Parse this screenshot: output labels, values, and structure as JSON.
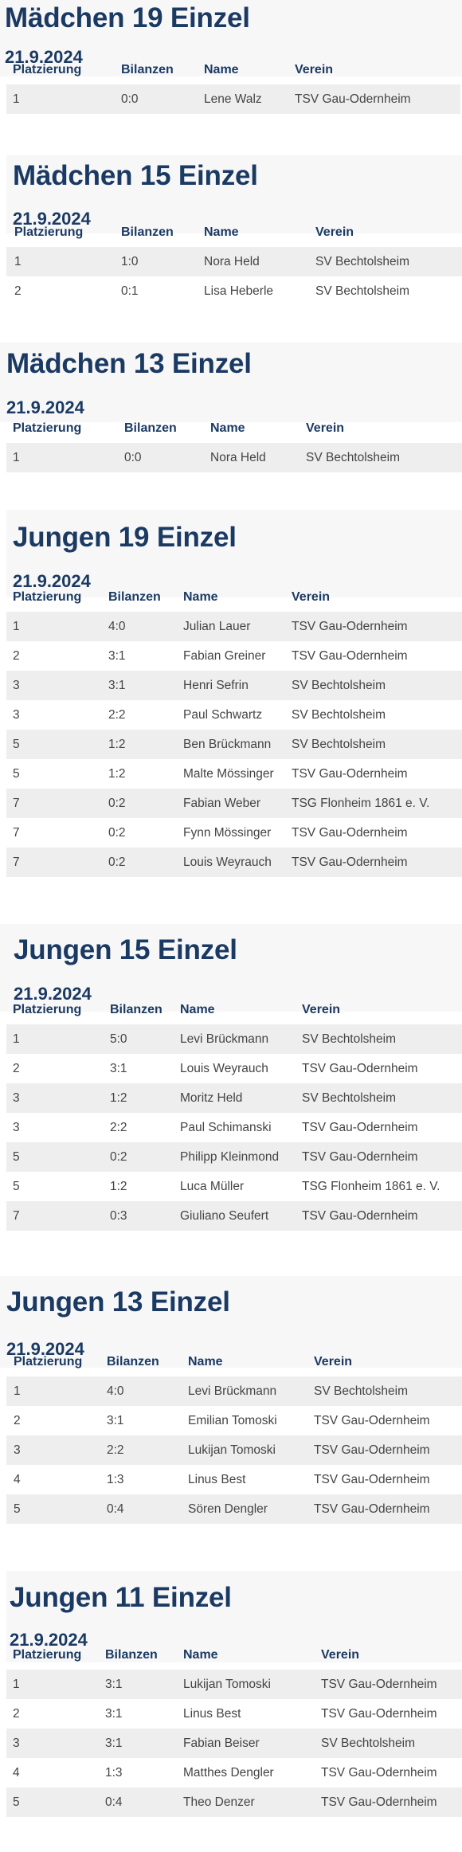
{
  "columns": [
    "Platzierung",
    "Bilanzen",
    "Name",
    "Verein"
  ],
  "sections": [
    {
      "title": "Mädchen 19 Einzel",
      "date": "21.9.2024",
      "rows": [
        [
          "1",
          "0:0",
          "Lene Walz",
          "TSV Gau-Odernheim"
        ]
      ]
    },
    {
      "title": "Mädchen 15 Einzel",
      "date": "21.9.2024",
      "rows": [
        [
          "1",
          "1:0",
          "Nora Held",
          "SV Bechtolsheim"
        ],
        [
          "2",
          "0:1",
          "Lisa Heberle",
          "SV Bechtolsheim"
        ]
      ]
    },
    {
      "title": "Mädchen 13 Einzel",
      "date": "21.9.2024",
      "rows": [
        [
          "1",
          "0:0",
          "Nora Held",
          "SV Bechtolsheim"
        ]
      ]
    },
    {
      "title": "Jungen 19 Einzel",
      "date": "21.9.2024",
      "rows": [
        [
          "1",
          "4:0",
          "Julian Lauer",
          "TSV Gau-Odernheim"
        ],
        [
          "2",
          "3:1",
          "Fabian Greiner",
          "TSV Gau-Odernheim"
        ],
        [
          "3",
          "3:1",
          "Henri Sefrin",
          "SV Bechtolsheim"
        ],
        [
          "3",
          "2:2",
          "Paul Schwartz",
          "SV Bechtolsheim"
        ],
        [
          "5",
          "1:2",
          "Ben Brückmann",
          "SV Bechtolsheim"
        ],
        [
          "5",
          "1:2",
          "Malte Mössinger",
          "TSV Gau-Odernheim"
        ],
        [
          "7",
          "0:2",
          "Fabian Weber",
          "TSG Flonheim 1861 e. V."
        ],
        [
          "7",
          "0:2",
          "Fynn Mössinger",
          "TSV Gau-Odernheim"
        ],
        [
          "7",
          "0:2",
          "Louis Weyrauch",
          "TSV Gau-Odernheim"
        ]
      ]
    },
    {
      "title": "Jungen 15 Einzel",
      "date": "21.9.2024",
      "rows": [
        [
          "1",
          "5:0",
          "Levi Brückmann",
          "SV Bechtolsheim"
        ],
        [
          "2",
          "3:1",
          "Louis Weyrauch",
          "TSV Gau-Odernheim"
        ],
        [
          "3",
          "1:2",
          "Moritz Held",
          "SV Bechtolsheim"
        ],
        [
          "3",
          "2:2",
          "Paul Schimanski",
          "TSV Gau-Odernheim"
        ],
        [
          "5",
          "0:2",
          "Philipp Kleinmond",
          "TSV Gau-Odernheim"
        ],
        [
          "5",
          "1:2",
          "Luca Müller",
          "TSG Flonheim 1861 e. V."
        ],
        [
          "7",
          "0:3",
          "Giuliano Seufert",
          "TSV Gau-Odernheim"
        ]
      ]
    },
    {
      "title": "Jungen 13 Einzel",
      "date": "21.9.2024",
      "rows": [
        [
          "1",
          "4:0",
          "Levi Brückmann",
          "SV Bechtolsheim"
        ],
        [
          "2",
          "3:1",
          "Emilian Tomoski",
          "TSV Gau-Odernheim"
        ],
        [
          "3",
          "2:2",
          "Lukijan Tomoski",
          "TSV Gau-Odernheim"
        ],
        [
          "4",
          "1:3",
          "Linus Best",
          "TSV Gau-Odernheim"
        ],
        [
          "5",
          "0:4",
          "Sören Dengler",
          "TSV Gau-Odernheim"
        ]
      ]
    },
    {
      "title": "Jungen 11 Einzel",
      "date": "21.9.2024",
      "rows": [
        [
          "1",
          "3:1",
          "Lukijan Tomoski",
          "TSV Gau-Odernheim"
        ],
        [
          "2",
          "3:1",
          "Linus Best",
          "TSV Gau-Odernheim"
        ],
        [
          "3",
          "3:1",
          "Fabian Beiser",
          "SV Bechtolsheim"
        ],
        [
          "4",
          "1:3",
          "Matthes Dengler",
          "TSV Gau-Odernheim"
        ],
        [
          "5",
          "0:4",
          "Theo Denzer",
          "TSV Gau-Odernheim"
        ]
      ]
    }
  ]
}
